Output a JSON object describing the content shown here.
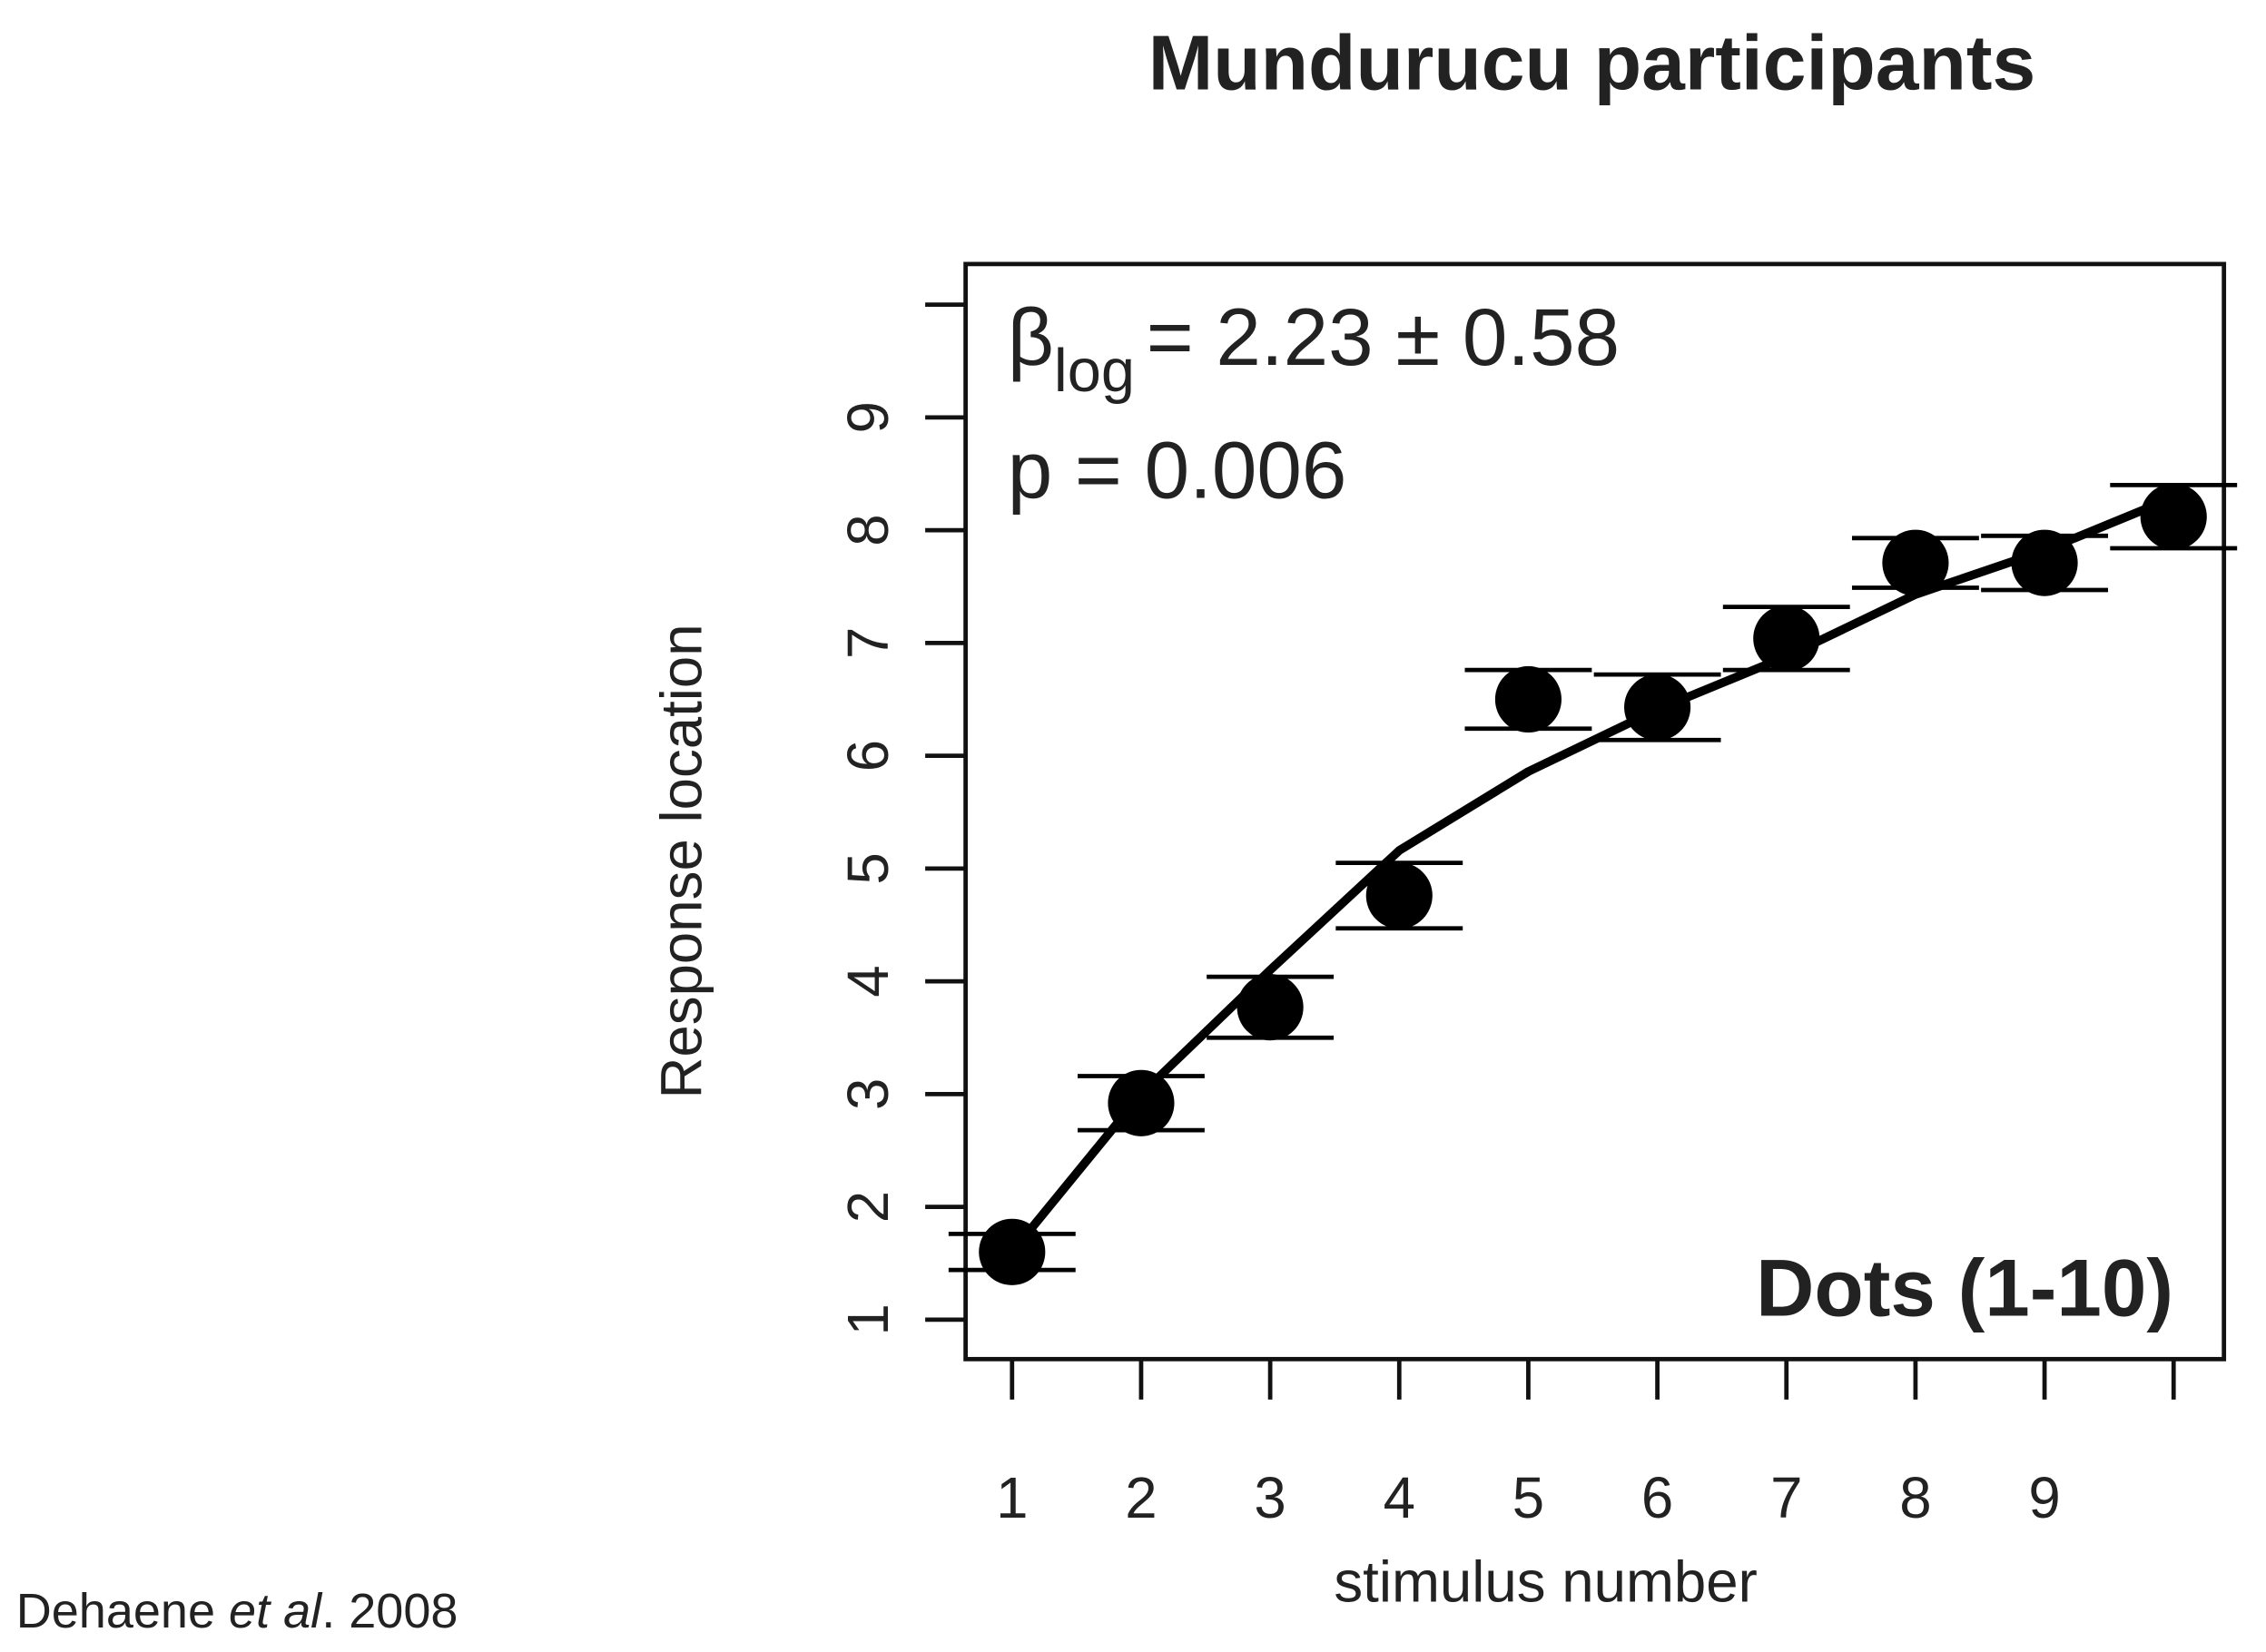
{
  "chart_data": {
    "type": "scatter",
    "title": "Mundurucu participants",
    "xlabel": "stimulus number",
    "ylabel": "Response location",
    "x": [
      1,
      2,
      3,
      4,
      5,
      6,
      7,
      8,
      9,
      10
    ],
    "series": [
      {
        "color": "#000000",
        "values": [
          1.6,
          2.92,
          3.77,
          4.76,
          6.5,
          6.43,
          7.04,
          7.71,
          7.71,
          8.12
        ],
        "errors": [
          0.16,
          0.24,
          0.27,
          0.29,
          0.26,
          0.29,
          0.28,
          0.22,
          0.24,
          0.28
        ]
      }
    ],
    "fit": {
      "color": "#000000",
      "values": [
        1.6,
        3.0,
        4.1,
        5.16,
        5.86,
        6.41,
        6.88,
        7.43,
        7.82,
        8.29
      ]
    },
    "xlim": [
      0.64,
      10.39
    ],
    "ylim": [
      0.65,
      10.36
    ],
    "xticks": [
      1,
      2,
      3,
      4,
      5,
      6,
      7,
      8,
      9,
      {
        "value": 10,
        "label": null
      }
    ],
    "yticks": [
      1,
      2,
      3,
      4,
      5,
      6,
      7,
      8,
      9,
      {
        "value": 10,
        "label": null
      }
    ],
    "annotations": {
      "beta_symbol": "β",
      "beta_subscript": "log",
      "beta_text": "= 2.23 ± 0.58",
      "p_text": "p = 0.006",
      "condition": "Dots (1-10)"
    },
    "source": {
      "author": "Dehaene ",
      "etal": "et al",
      "year": ". 2008"
    }
  }
}
